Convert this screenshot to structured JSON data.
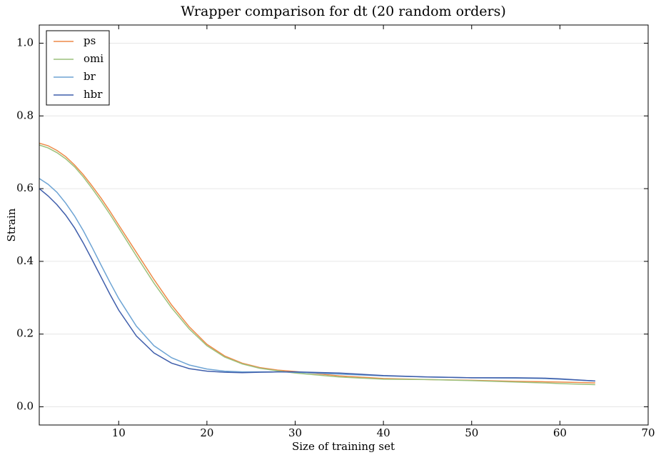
{
  "chart_data": {
    "type": "line",
    "title": "Wrapper comparison for dt (20 random orders)",
    "x_label": "Size of training set",
    "y_label": "Strain",
    "x": [
      1,
      2,
      3,
      4,
      5,
      6,
      7,
      8,
      9,
      10,
      12,
      14,
      16,
      18,
      20,
      22,
      24,
      26,
      28,
      30,
      35,
      40,
      45,
      50,
      55,
      58,
      60,
      64
    ],
    "series": [
      {
        "name": "ps",
        "color": "#ee8a48",
        "values": [
          0.725,
          0.718,
          0.705,
          0.688,
          0.665,
          0.638,
          0.607,
          0.574,
          0.538,
          0.5,
          0.425,
          0.35,
          0.28,
          0.22,
          0.172,
          0.14,
          0.12,
          0.108,
          0.101,
          0.097,
          0.085,
          0.078,
          0.075,
          0.073,
          0.07,
          0.069,
          0.068,
          0.066
        ]
      },
      {
        "name": "omi",
        "color": "#9cc17c",
        "values": [
          0.72,
          0.712,
          0.699,
          0.682,
          0.66,
          0.632,
          0.6,
          0.566,
          0.53,
          0.492,
          0.415,
          0.34,
          0.272,
          0.214,
          0.168,
          0.137,
          0.118,
          0.106,
          0.099,
          0.093,
          0.082,
          0.076,
          0.075,
          0.072,
          0.068,
          0.066,
          0.064,
          0.061
        ]
      },
      {
        "name": "br",
        "color": "#6ea4d4",
        "values": [
          0.628,
          0.612,
          0.59,
          0.56,
          0.525,
          0.484,
          0.438,
          0.39,
          0.343,
          0.298,
          0.222,
          0.168,
          0.135,
          0.115,
          0.104,
          0.098,
          0.096,
          0.096,
          0.096,
          0.095,
          0.09,
          0.085,
          0.082,
          0.08,
          0.079,
          0.078,
          0.076,
          0.071
        ]
      },
      {
        "name": "hbr",
        "color": "#3f5eab",
        "values": [
          0.6,
          0.58,
          0.556,
          0.527,
          0.492,
          0.45,
          0.404,
          0.357,
          0.31,
          0.266,
          0.195,
          0.148,
          0.12,
          0.105,
          0.098,
          0.095,
          0.094,
          0.095,
          0.096,
          0.096,
          0.093,
          0.086,
          0.082,
          0.08,
          0.08,
          0.079,
          0.077,
          0.071
        ]
      }
    ],
    "xlim": [
      1,
      70
    ],
    "ylim": [
      -0.05,
      1.05
    ],
    "xticks": [
      10,
      20,
      30,
      40,
      50,
      60,
      70
    ],
    "yticks": [
      {
        "value": 0,
        "label": "0.0"
      },
      {
        "value": 0.2,
        "label": "0.2"
      },
      {
        "value": 0.4,
        "label": "0.4"
      },
      {
        "value": 0.6,
        "label": "0.6"
      },
      {
        "value": 0.8,
        "label": "0.8"
      },
      {
        "value": 1,
        "label": "1.0"
      }
    ],
    "grid": true,
    "legend": "upper-left"
  }
}
